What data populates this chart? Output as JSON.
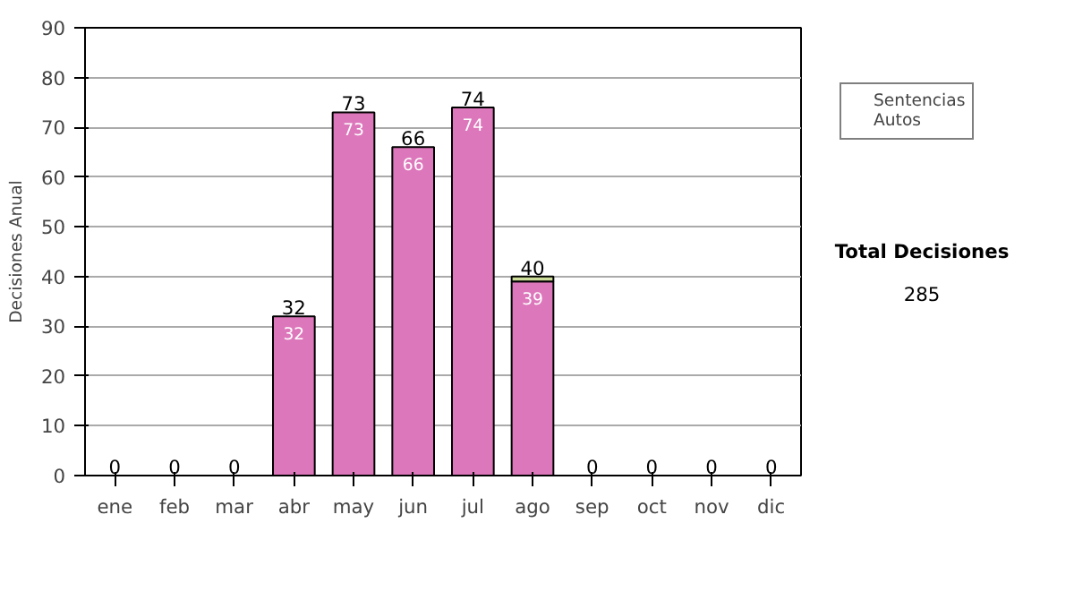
{
  "chart_data": {
    "type": "bar",
    "stacked": true,
    "ylabel": "Decisiones Anual",
    "categories": [
      "ene",
      "feb",
      "mar",
      "abr",
      "may",
      "jun",
      "jul",
      "ago",
      "sep",
      "oct",
      "nov",
      "dic"
    ],
    "series": [
      {
        "name": "Sentencias",
        "color": "#dd77bb",
        "values": [
          0,
          0,
          0,
          32,
          73,
          66,
          74,
          39,
          0,
          0,
          0,
          0
        ],
        "value_labels": [
          null,
          null,
          null,
          "32",
          "73",
          "66",
          "74",
          "39",
          null,
          null,
          null,
          null
        ]
      },
      {
        "name": "Autos",
        "color": "#ccdd99",
        "values": [
          0,
          0,
          0,
          0,
          0,
          0,
          0,
          1,
          0,
          0,
          0,
          0
        ]
      }
    ],
    "totals": [
      "0",
      "0",
      "0",
      "32",
      "73",
      "66",
      "74",
      "40",
      "0",
      "0",
      "0",
      "0"
    ],
    "ylim": [
      0,
      90
    ],
    "yticks": [
      0,
      10,
      20,
      30,
      40,
      50,
      60,
      70,
      80,
      90
    ],
    "grid": "y",
    "legend": "right",
    "annotations": [
      "Total Decisiones",
      "285"
    ]
  }
}
